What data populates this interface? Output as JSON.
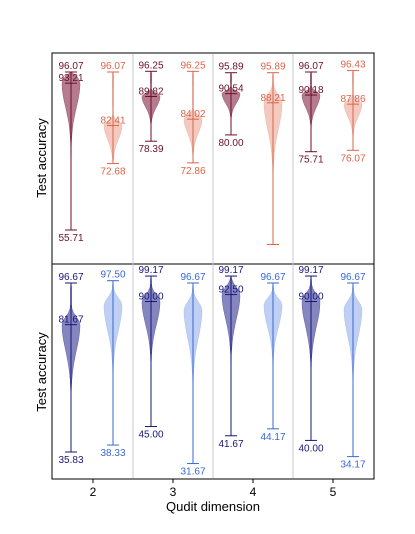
{
  "chart_data": [
    {
      "type": "violin",
      "ylabel": "Test accuracy",
      "categories": [
        "2",
        "3",
        "4",
        "5"
      ],
      "series": [
        {
          "color": "#6b0f2a",
          "fill": "#9b5068",
          "max": [
            96.07,
            96.25,
            95.89,
            96.07
          ],
          "mean": [
            93.21,
            89.82,
            90.54,
            90.18
          ],
          "min": [
            55.71,
            78.39,
            80.0,
            75.71
          ],
          "max_label": [
            "96.07",
            "96.25",
            "95.89",
            "96.07"
          ],
          "mean_label": [
            "93.21",
            "89.82",
            "90.54",
            "90.18"
          ],
          "min_label": [
            "55.71",
            "78.39",
            "80.00",
            "75.71"
          ]
        },
        {
          "color": "#d9654a",
          "fill": "#f0b8ab",
          "max": [
            96.07,
            96.25,
            95.89,
            96.43
          ],
          "mean": [
            82.41,
            84.02,
            88.21,
            87.86
          ],
          "min": [
            72.68,
            72.86,
            52.0,
            76.07
          ],
          "max_label": [
            "96.07",
            "96.25",
            "95.89",
            "96.43"
          ],
          "mean_label": [
            "82.41",
            "84.02",
            "88.21",
            "87.86"
          ],
          "min_label": [
            "72.68",
            "72.86",
            "",
            "76.07"
          ]
        }
      ]
    },
    {
      "type": "violin",
      "ylabel": "Test accuracy",
      "xlabel": "Qudit dimension",
      "categories": [
        "2",
        "3",
        "4",
        "5"
      ],
      "series": [
        {
          "color": "#16167a",
          "fill": "#5e5ea8",
          "max": [
            96.67,
            99.17,
            99.17,
            99.17
          ],
          "mean": [
            81.67,
            90.0,
            92.5,
            90.0
          ],
          "min": [
            35.83,
            45.0,
            41.67,
            40.0
          ],
          "max_label": [
            "96.67",
            "99.17",
            "99.17",
            "99.17"
          ],
          "mean_label": [
            "81.67",
            "90.00",
            "92.50",
            "90.00"
          ],
          "min_label": [
            "35.83",
            "45.00",
            "41.67",
            "40.00"
          ]
        },
        {
          "color": "#3a66d6",
          "fill": "#a9c0f0",
          "max": [
            97.5,
            96.67,
            96.67,
            96.67
          ],
          "mean": [
            null,
            null,
            null,
            null
          ],
          "min": [
            38.33,
            31.67,
            44.17,
            34.17
          ],
          "max_label": [
            "97.50",
            "96.67",
            "96.67",
            "96.67"
          ],
          "mean_label": [
            "",
            "",
            "",
            ""
          ],
          "min_label": [
            "38.33",
            "31.67",
            "44.17",
            "34.17"
          ]
        }
      ]
    }
  ]
}
